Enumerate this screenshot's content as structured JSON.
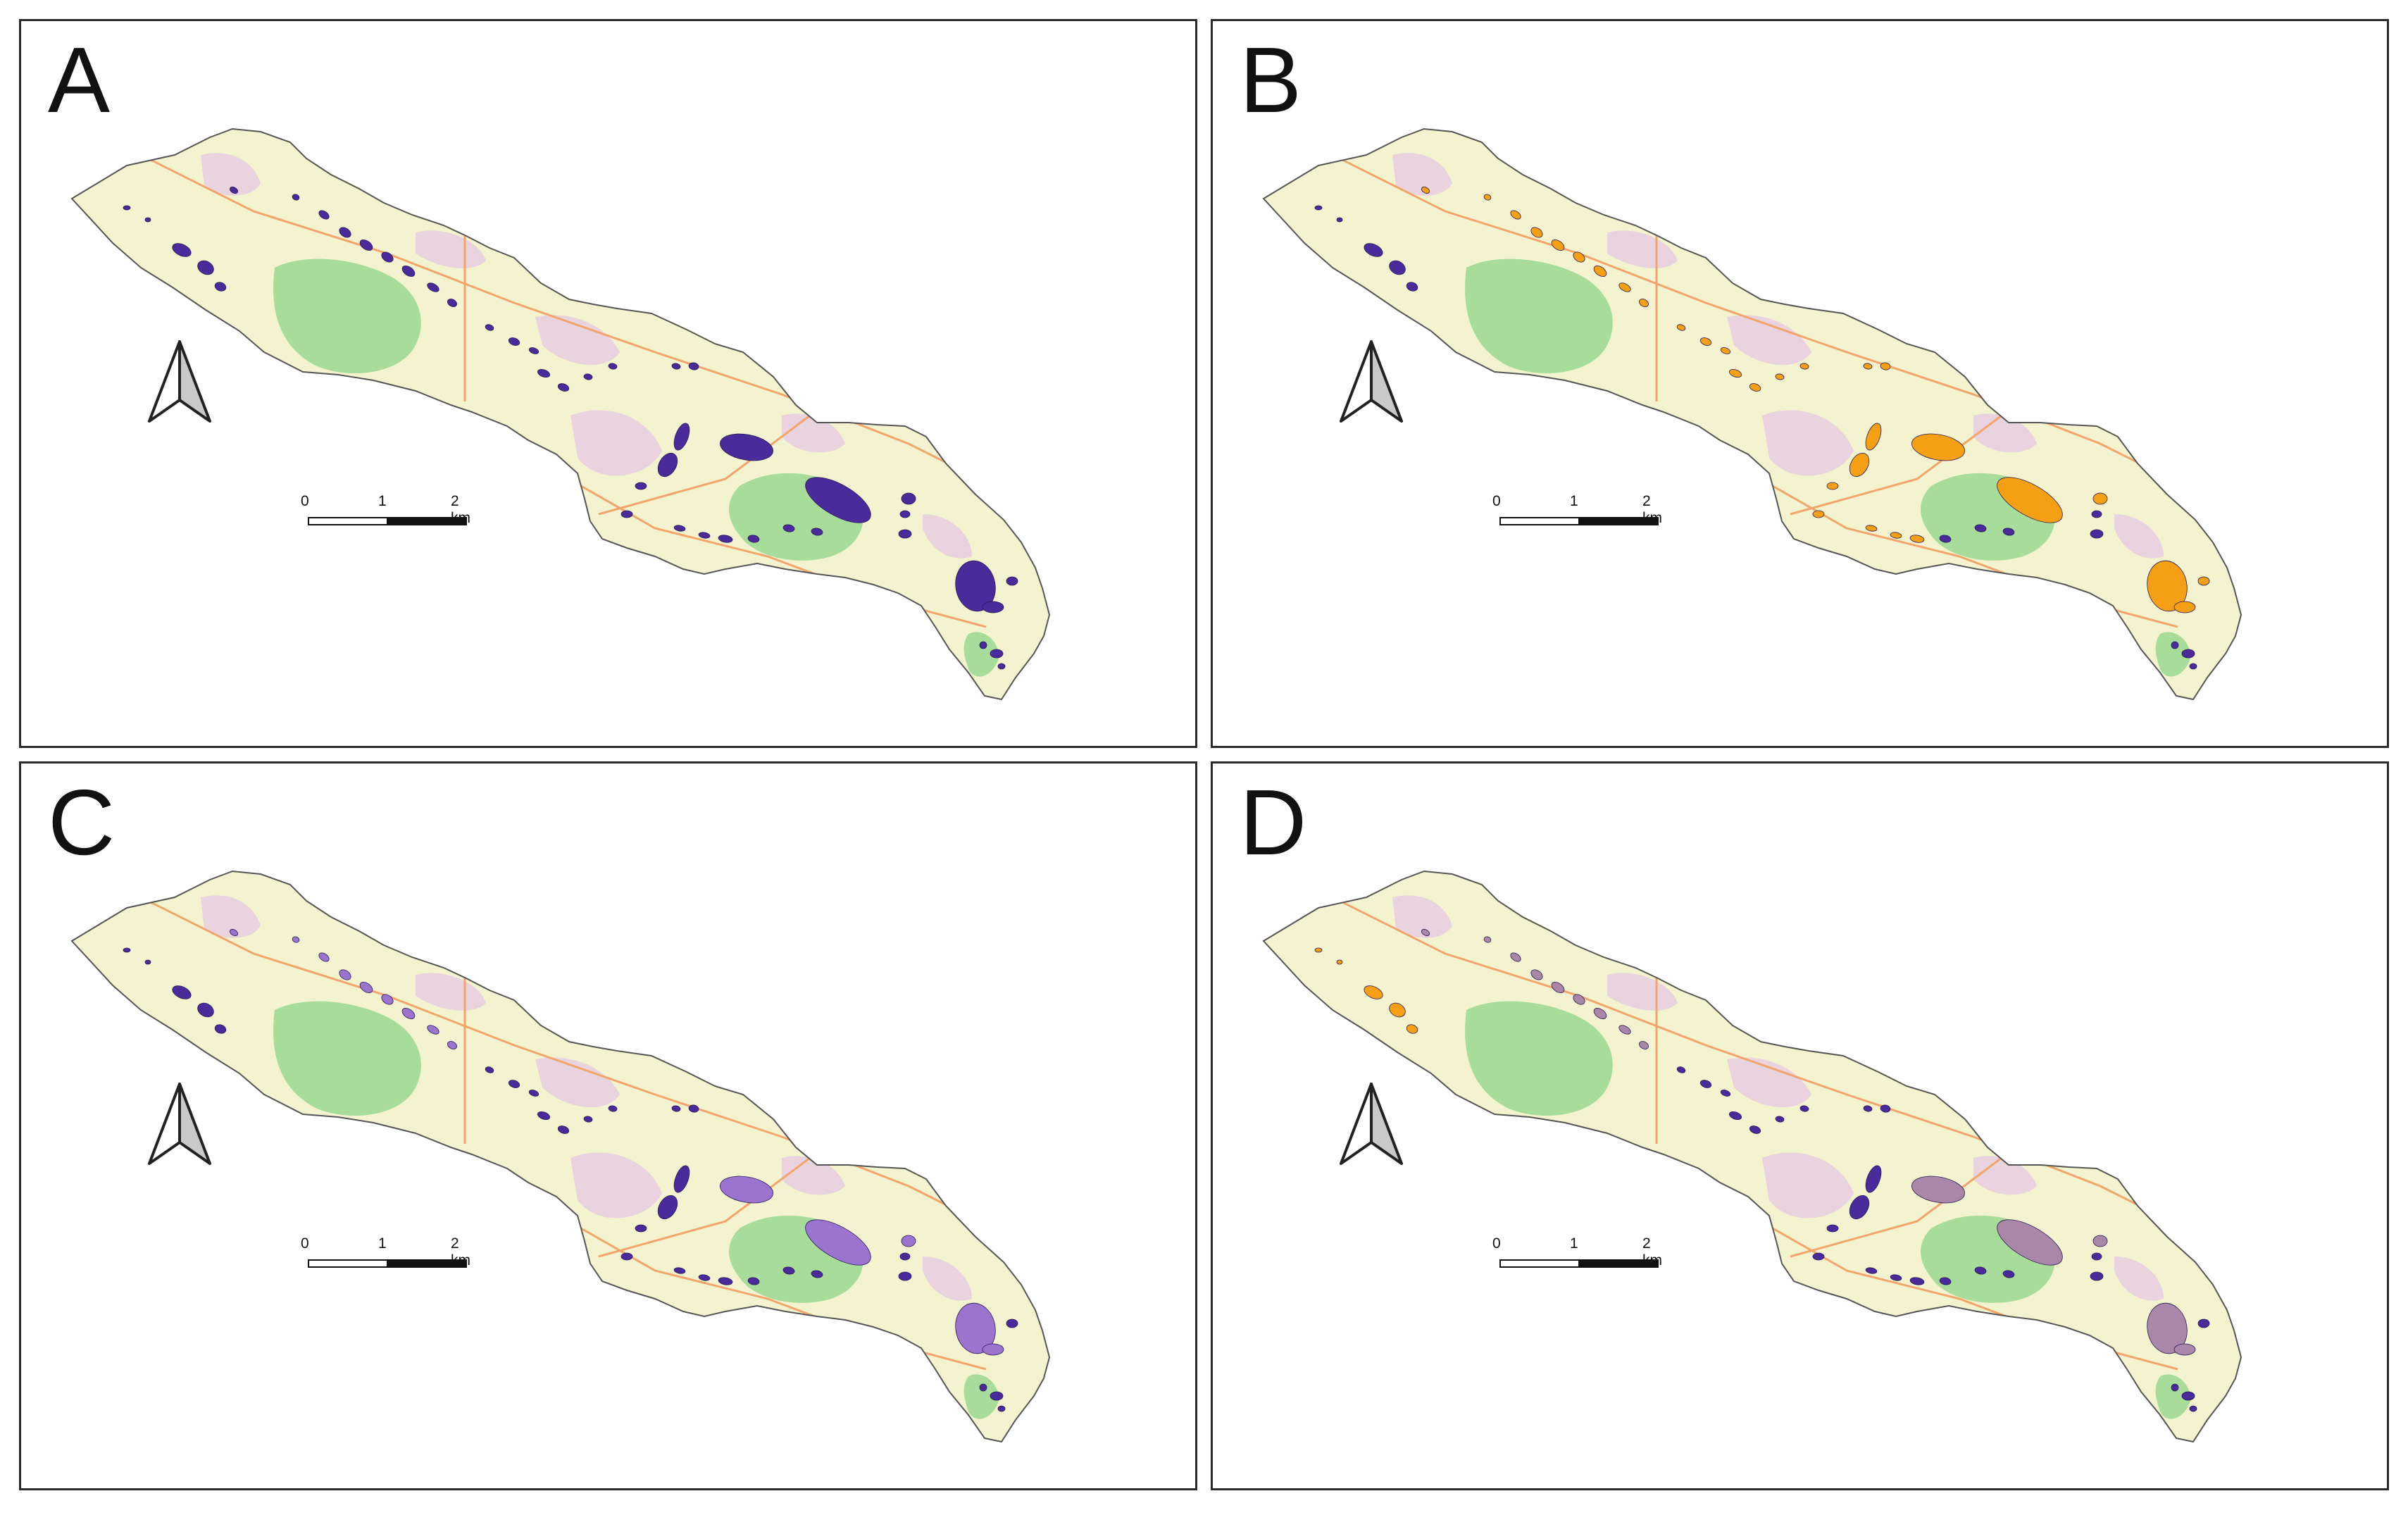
{
  "panels": [
    {
      "id": "A",
      "letter": "A",
      "scheme": "A"
    },
    {
      "id": "B",
      "letter": "B",
      "scheme": "B"
    },
    {
      "id": "C",
      "letter": "C",
      "scheme": "C"
    },
    {
      "id": "D",
      "letter": "D",
      "scheme": "D"
    }
  ],
  "scale_bar": {
    "tick_0": "0",
    "tick_1": "1",
    "tick_2": "2 km"
  },
  "north_arrow_icon": "north-arrow-icon",
  "colors": {
    "frame": "#2b2b2b",
    "base_land": "#f3f4cf",
    "forest": "#a7dc9a",
    "urban": "#e6cce0",
    "road": "#f2a56a",
    "dark_purple": "#4b2a9c",
    "light_purple": "#9a74cf",
    "orange": "#f5a014",
    "mauve": "#a987a8",
    "outline": "#555555"
  }
}
